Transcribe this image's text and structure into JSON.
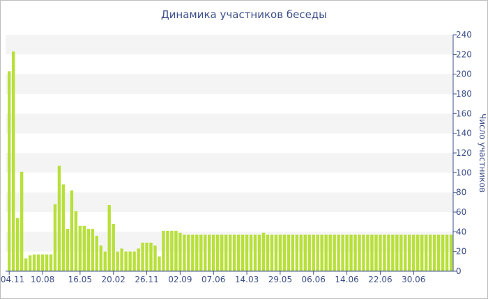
{
  "chart_data": {
    "type": "bar",
    "title": "Динамика участников беседы",
    "xlabel": "",
    "ylabel": "Число участников",
    "ylim": [
      0,
      240
    ],
    "yticks": [
      0,
      20,
      40,
      60,
      80,
      100,
      120,
      140,
      160,
      180,
      200,
      220,
      240
    ],
    "grid": "alternating horizontal bands",
    "bar_color": "#b8e03a",
    "band_color": "#f4f4f4",
    "axis_color": "#3c4f8a",
    "x_tick_labels": [
      "04.11",
      "10.08",
      "16.05",
      "20.02",
      "26.11",
      "02.09",
      "07.06",
      "14.03",
      "29.05",
      "06.06",
      "14.06",
      "22.06",
      "30.06"
    ],
    "x_tick_bar_index": [
      0,
      8,
      17,
      25,
      33,
      41,
      49,
      57,
      65,
      73,
      81,
      89,
      97
    ],
    "values": [
      203,
      223,
      54,
      101,
      13,
      16,
      17,
      17,
      17,
      17,
      17,
      68,
      107,
      88,
      43,
      82,
      61,
      46,
      46,
      43,
      43,
      36,
      26,
      20,
      67,
      48,
      20,
      23,
      20,
      20,
      20,
      23,
      29,
      29,
      29,
      26,
      15,
      41,
      41,
      41,
      41,
      39,
      37,
      37,
      37,
      37,
      37,
      37,
      37,
      37,
      37,
      37,
      37,
      37,
      37,
      37,
      37,
      37,
      37,
      37,
      37,
      39,
      37,
      37,
      37,
      37,
      37,
      37,
      37,
      37,
      37,
      37,
      37,
      37,
      37,
      37,
      37,
      37,
      37,
      37,
      37,
      37,
      37,
      37,
      37,
      37,
      37,
      37,
      37,
      37,
      37,
      37,
      37,
      37,
      37,
      37,
      37,
      37,
      37,
      37,
      37,
      37,
      37,
      37,
      37,
      37,
      37
    ]
  }
}
